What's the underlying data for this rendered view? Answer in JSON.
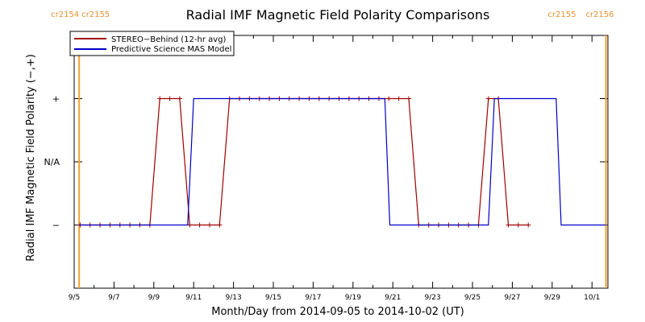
{
  "colors": {
    "stereo": "#a00000",
    "mas": "#0000c8",
    "carrington": "#f0a030",
    "axis": "#000000",
    "background": "#ffffff"
  },
  "chart_data": {
    "type": "line",
    "title": "Radial IMF Magnetic Field Polarity Comparisons",
    "xlabel": "Month/Day from 2014-09-05 to 2014-10-02 (UT)",
    "ylabel": "Radial IMF Magnetic Field Polarity (−,+)",
    "x_unit": "day of September 2014 (UT)",
    "xlim": [
      5,
      31.8
    ],
    "ylim": [
      -1,
      1
    ],
    "x_ticks": [
      {
        "x": 5,
        "label": "9/5"
      },
      {
        "x": 7,
        "label": "9/7"
      },
      {
        "x": 9,
        "label": "9/9"
      },
      {
        "x": 11,
        "label": "9/11"
      },
      {
        "x": 13,
        "label": "9/13"
      },
      {
        "x": 15,
        "label": "9/15"
      },
      {
        "x": 17,
        "label": "9/17"
      },
      {
        "x": 19,
        "label": "9/19"
      },
      {
        "x": 21,
        "label": "9/21"
      },
      {
        "x": 23,
        "label": "9/23"
      },
      {
        "x": 25,
        "label": "9/25"
      },
      {
        "x": 27,
        "label": "9/27"
      },
      {
        "x": 29,
        "label": "9/29"
      },
      {
        "x": 31,
        "label": "10/1"
      }
    ],
    "y_ticks": [
      {
        "y": 0.5,
        "label": "+"
      },
      {
        "y": 0,
        "label": "N/A"
      },
      {
        "y": -0.5,
        "label": "−"
      }
    ],
    "carrington_boundaries": [
      {
        "x": 5.25,
        "labels": [
          "cr2154",
          "cr2155"
        ],
        "side": "left"
      },
      {
        "x": 31.7,
        "labels": [
          "cr2155",
          "cr2156"
        ],
        "side": "right"
      }
    ],
    "legend": {
      "placement": "top-left",
      "entries": [
        "STEREO−Behind (12-hr avg)",
        "Predictive Science MAS Model"
      ]
    },
    "series": [
      {
        "name": "STEREO−Behind (12-hr avg)",
        "markers": "plus",
        "points": [
          [
            5.3,
            -0.5
          ],
          [
            5.8,
            -0.5
          ],
          [
            6.3,
            -0.5
          ],
          [
            6.8,
            -0.5
          ],
          [
            7.3,
            -0.5
          ],
          [
            7.8,
            -0.5
          ],
          [
            8.3,
            -0.5
          ],
          [
            8.8,
            -0.5
          ],
          [
            9.3,
            0.5
          ],
          [
            9.8,
            0.5
          ],
          [
            10.3,
            0.5
          ],
          [
            10.8,
            -0.5
          ],
          [
            11.3,
            -0.5
          ],
          [
            11.8,
            -0.5
          ],
          [
            12.3,
            -0.5
          ],
          [
            12.8,
            0.5
          ],
          [
            13.3,
            0.5
          ],
          [
            13.8,
            0.5
          ],
          [
            14.3,
            0.5
          ],
          [
            14.8,
            0.5
          ],
          [
            15.3,
            0.5
          ],
          [
            15.8,
            0.5
          ],
          [
            16.3,
            0.5
          ],
          [
            16.8,
            0.5
          ],
          [
            17.3,
            0.5
          ],
          [
            17.8,
            0.5
          ],
          [
            18.3,
            0.5
          ],
          [
            18.8,
            0.5
          ],
          [
            19.3,
            0.5
          ],
          [
            19.8,
            0.5
          ],
          [
            20.3,
            0.5
          ],
          [
            20.8,
            0.5
          ],
          [
            21.3,
            0.5
          ],
          [
            21.8,
            0.5
          ],
          [
            22.3,
            -0.5
          ],
          [
            22.8,
            -0.5
          ],
          [
            23.3,
            -0.5
          ],
          [
            23.8,
            -0.5
          ],
          [
            24.3,
            -0.5
          ],
          [
            24.8,
            -0.5
          ],
          [
            25.3,
            -0.5
          ],
          [
            25.8,
            0.5
          ],
          [
            26.3,
            0.5
          ],
          [
            26.8,
            -0.5
          ],
          [
            27.3,
            -0.5
          ],
          [
            27.8,
            -0.5
          ]
        ]
      },
      {
        "name": "Predictive Science MAS Model",
        "markers": "none",
        "points": [
          [
            5.25,
            -0.5
          ],
          [
            10.7,
            -0.5
          ],
          [
            11.0,
            0.5
          ],
          [
            20.6,
            0.5
          ],
          [
            20.85,
            -0.5
          ],
          [
            25.8,
            -0.5
          ],
          [
            26.1,
            0.5
          ],
          [
            29.2,
            0.5
          ],
          [
            29.45,
            -0.5
          ],
          [
            31.7,
            -0.5
          ]
        ]
      }
    ]
  }
}
